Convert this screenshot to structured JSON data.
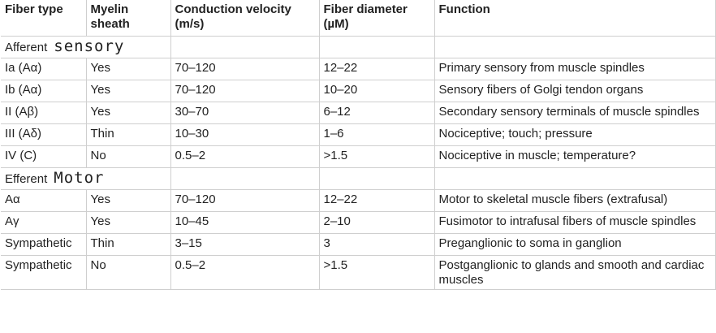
{
  "table": {
    "header": [
      "Fiber type",
      "Myelin sheath",
      "Conduction velocity (m/s)",
      "Fiber diameter (µM)",
      "Function"
    ],
    "rows": [
      {
        "section": "Afferent",
        "annotation": "sensory"
      },
      [
        "Ia (Aα)",
        "Yes",
        "70–120",
        "12–22",
        "Primary sensory from muscle spindles"
      ],
      [
        "Ib (Aα)",
        "Yes",
        "70–120",
        "10–20",
        "Sensory fibers of Golgi tendon organs"
      ],
      [
        "II (Aβ)",
        "Yes",
        "30–70",
        "6–12",
        "Secondary sensory terminals of muscle spindles"
      ],
      [
        "III (Aδ)",
        "Thin",
        "10–30",
        "1–6",
        "Nociceptive; touch; pressure"
      ],
      [
        "IV (C)",
        "No",
        "0.5–2",
        ">1.5",
        "Nociceptive in muscle; temperature?"
      ],
      {
        "section": "Efferent",
        "annotation": "Motor"
      },
      [
        "Aα",
        "Yes",
        "70–120",
        "12–22",
        "Motor to skeletal muscle fibers (extrafusal)"
      ],
      [
        "Aγ",
        "Yes",
        "10–45",
        "2–10",
        "Fusimotor to intrafusal fibers of muscle spindles"
      ],
      [
        "Sympathetic",
        "Thin",
        "3–15",
        "3",
        "Preganglionic to soma in ganglion"
      ],
      [
        "Sympathetic",
        "No",
        "0.5–2",
        ">1.5",
        "Postganglionic to glands and smooth and cardiac muscles"
      ]
    ]
  }
}
